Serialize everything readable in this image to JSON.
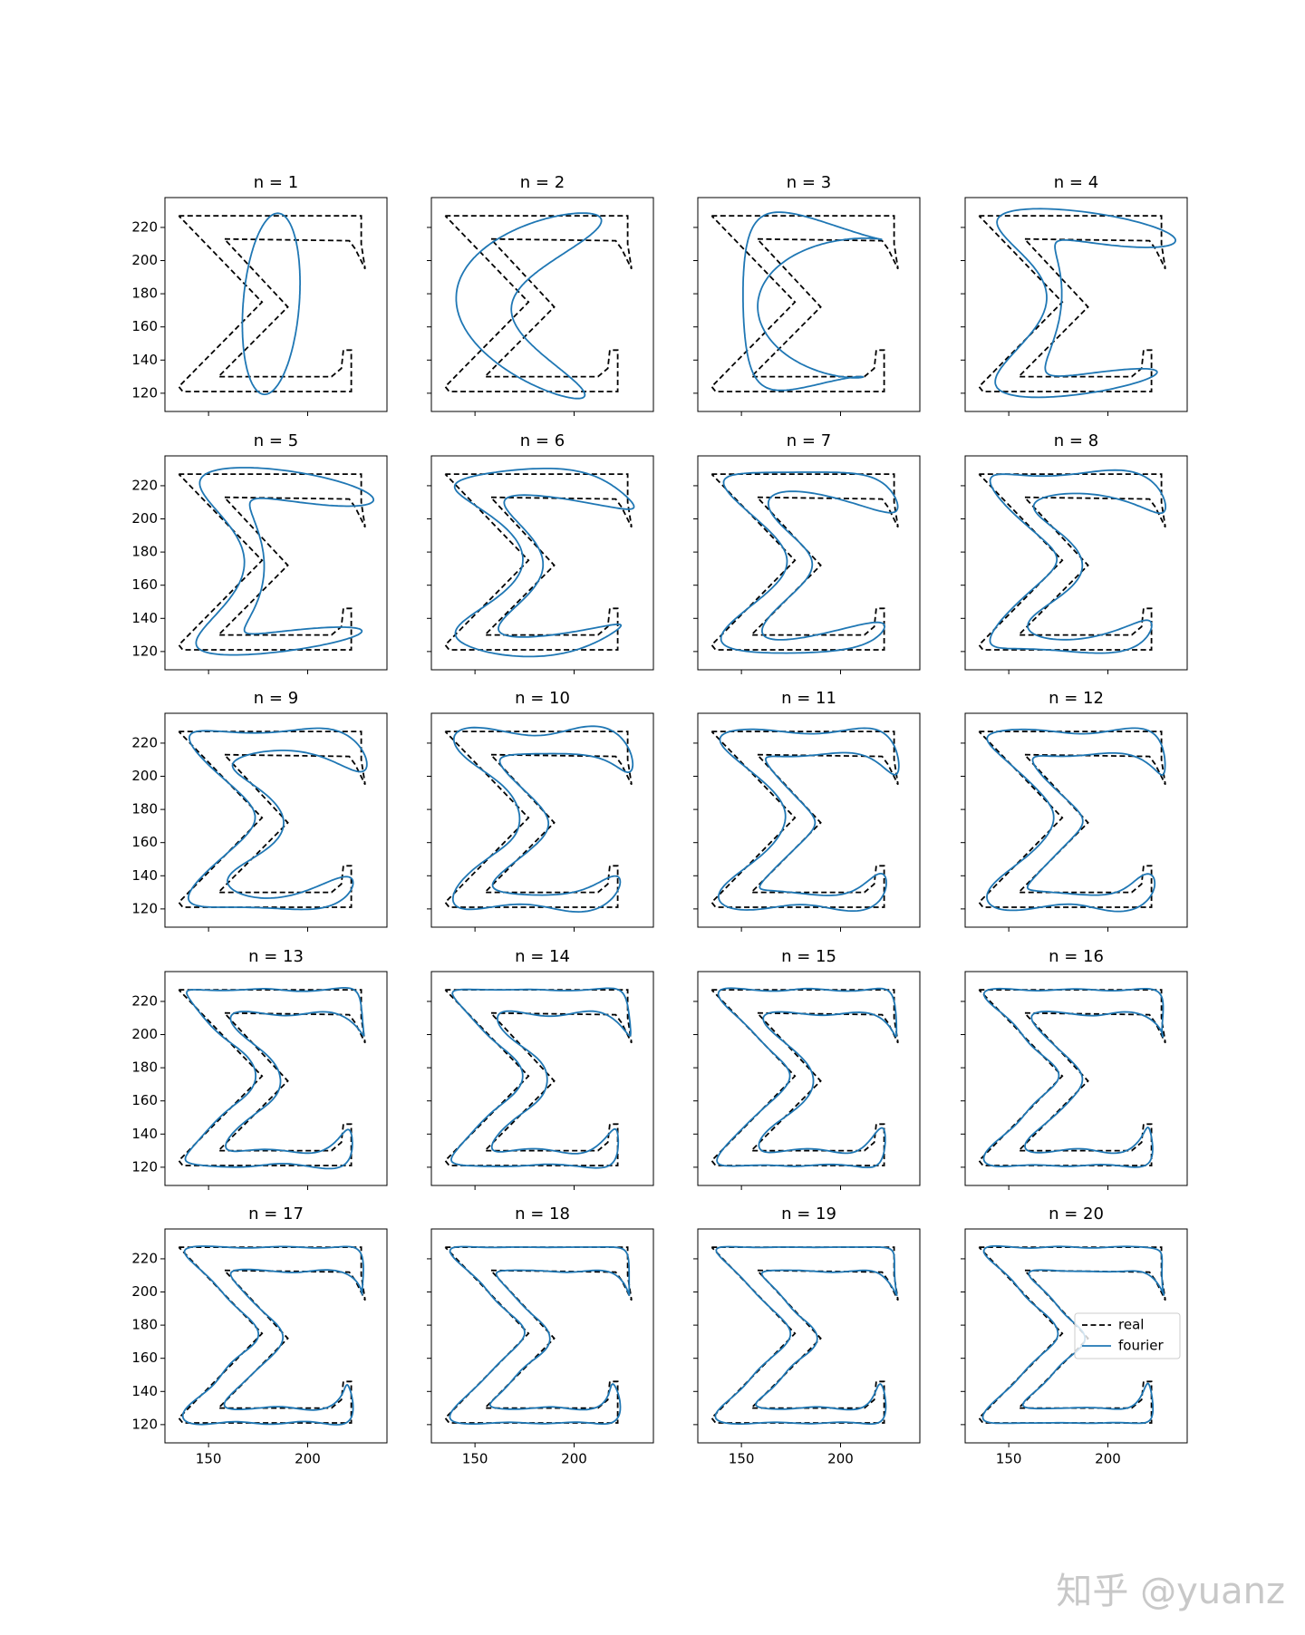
{
  "chart_data": {
    "type": "line",
    "real": {
      "name": "real",
      "color": "#000000",
      "x": [
        135,
        227,
        227,
        229,
        224,
        221,
        158,
        190,
        155,
        212,
        217,
        218,
        222,
        222,
        137,
        135,
        177,
        135
      ],
      "y": [
        227,
        227,
        210,
        195,
        207,
        212,
        213,
        172,
        130,
        130,
        135,
        146,
        146,
        121,
        121,
        124,
        175,
        227
      ]
    },
    "fourier": {
      "name": "fourier",
      "color": "#1f77b4"
    },
    "panels": [
      {
        "title": "n = 1",
        "n": 1
      },
      {
        "title": "n = 2",
        "n": 2
      },
      {
        "title": "n = 3",
        "n": 3
      },
      {
        "title": "n = 4",
        "n": 4
      },
      {
        "title": "n = 5",
        "n": 5
      },
      {
        "title": "n = 6",
        "n": 6
      },
      {
        "title": "n = 7",
        "n": 7
      },
      {
        "title": "n = 8",
        "n": 8
      },
      {
        "title": "n = 9",
        "n": 9
      },
      {
        "title": "n = 10",
        "n": 10
      },
      {
        "title": "n = 11",
        "n": 11
      },
      {
        "title": "n = 12",
        "n": 12
      },
      {
        "title": "n = 13",
        "n": 13
      },
      {
        "title": "n = 14",
        "n": 14
      },
      {
        "title": "n = 15",
        "n": 15
      },
      {
        "title": "n = 16",
        "n": 16
      },
      {
        "title": "n = 17",
        "n": 17
      },
      {
        "title": "n = 18",
        "n": 18
      },
      {
        "title": "n = 19",
        "n": 19
      },
      {
        "title": "n = 20",
        "n": 20
      }
    ],
    "xlim": [
      128,
      240
    ],
    "ylim": [
      109,
      238
    ],
    "xticks": [
      150,
      200
    ],
    "yticks": [
      120,
      140,
      160,
      180,
      200,
      220
    ],
    "legend": "center right"
  },
  "watermark": "知乎 @yuanz"
}
